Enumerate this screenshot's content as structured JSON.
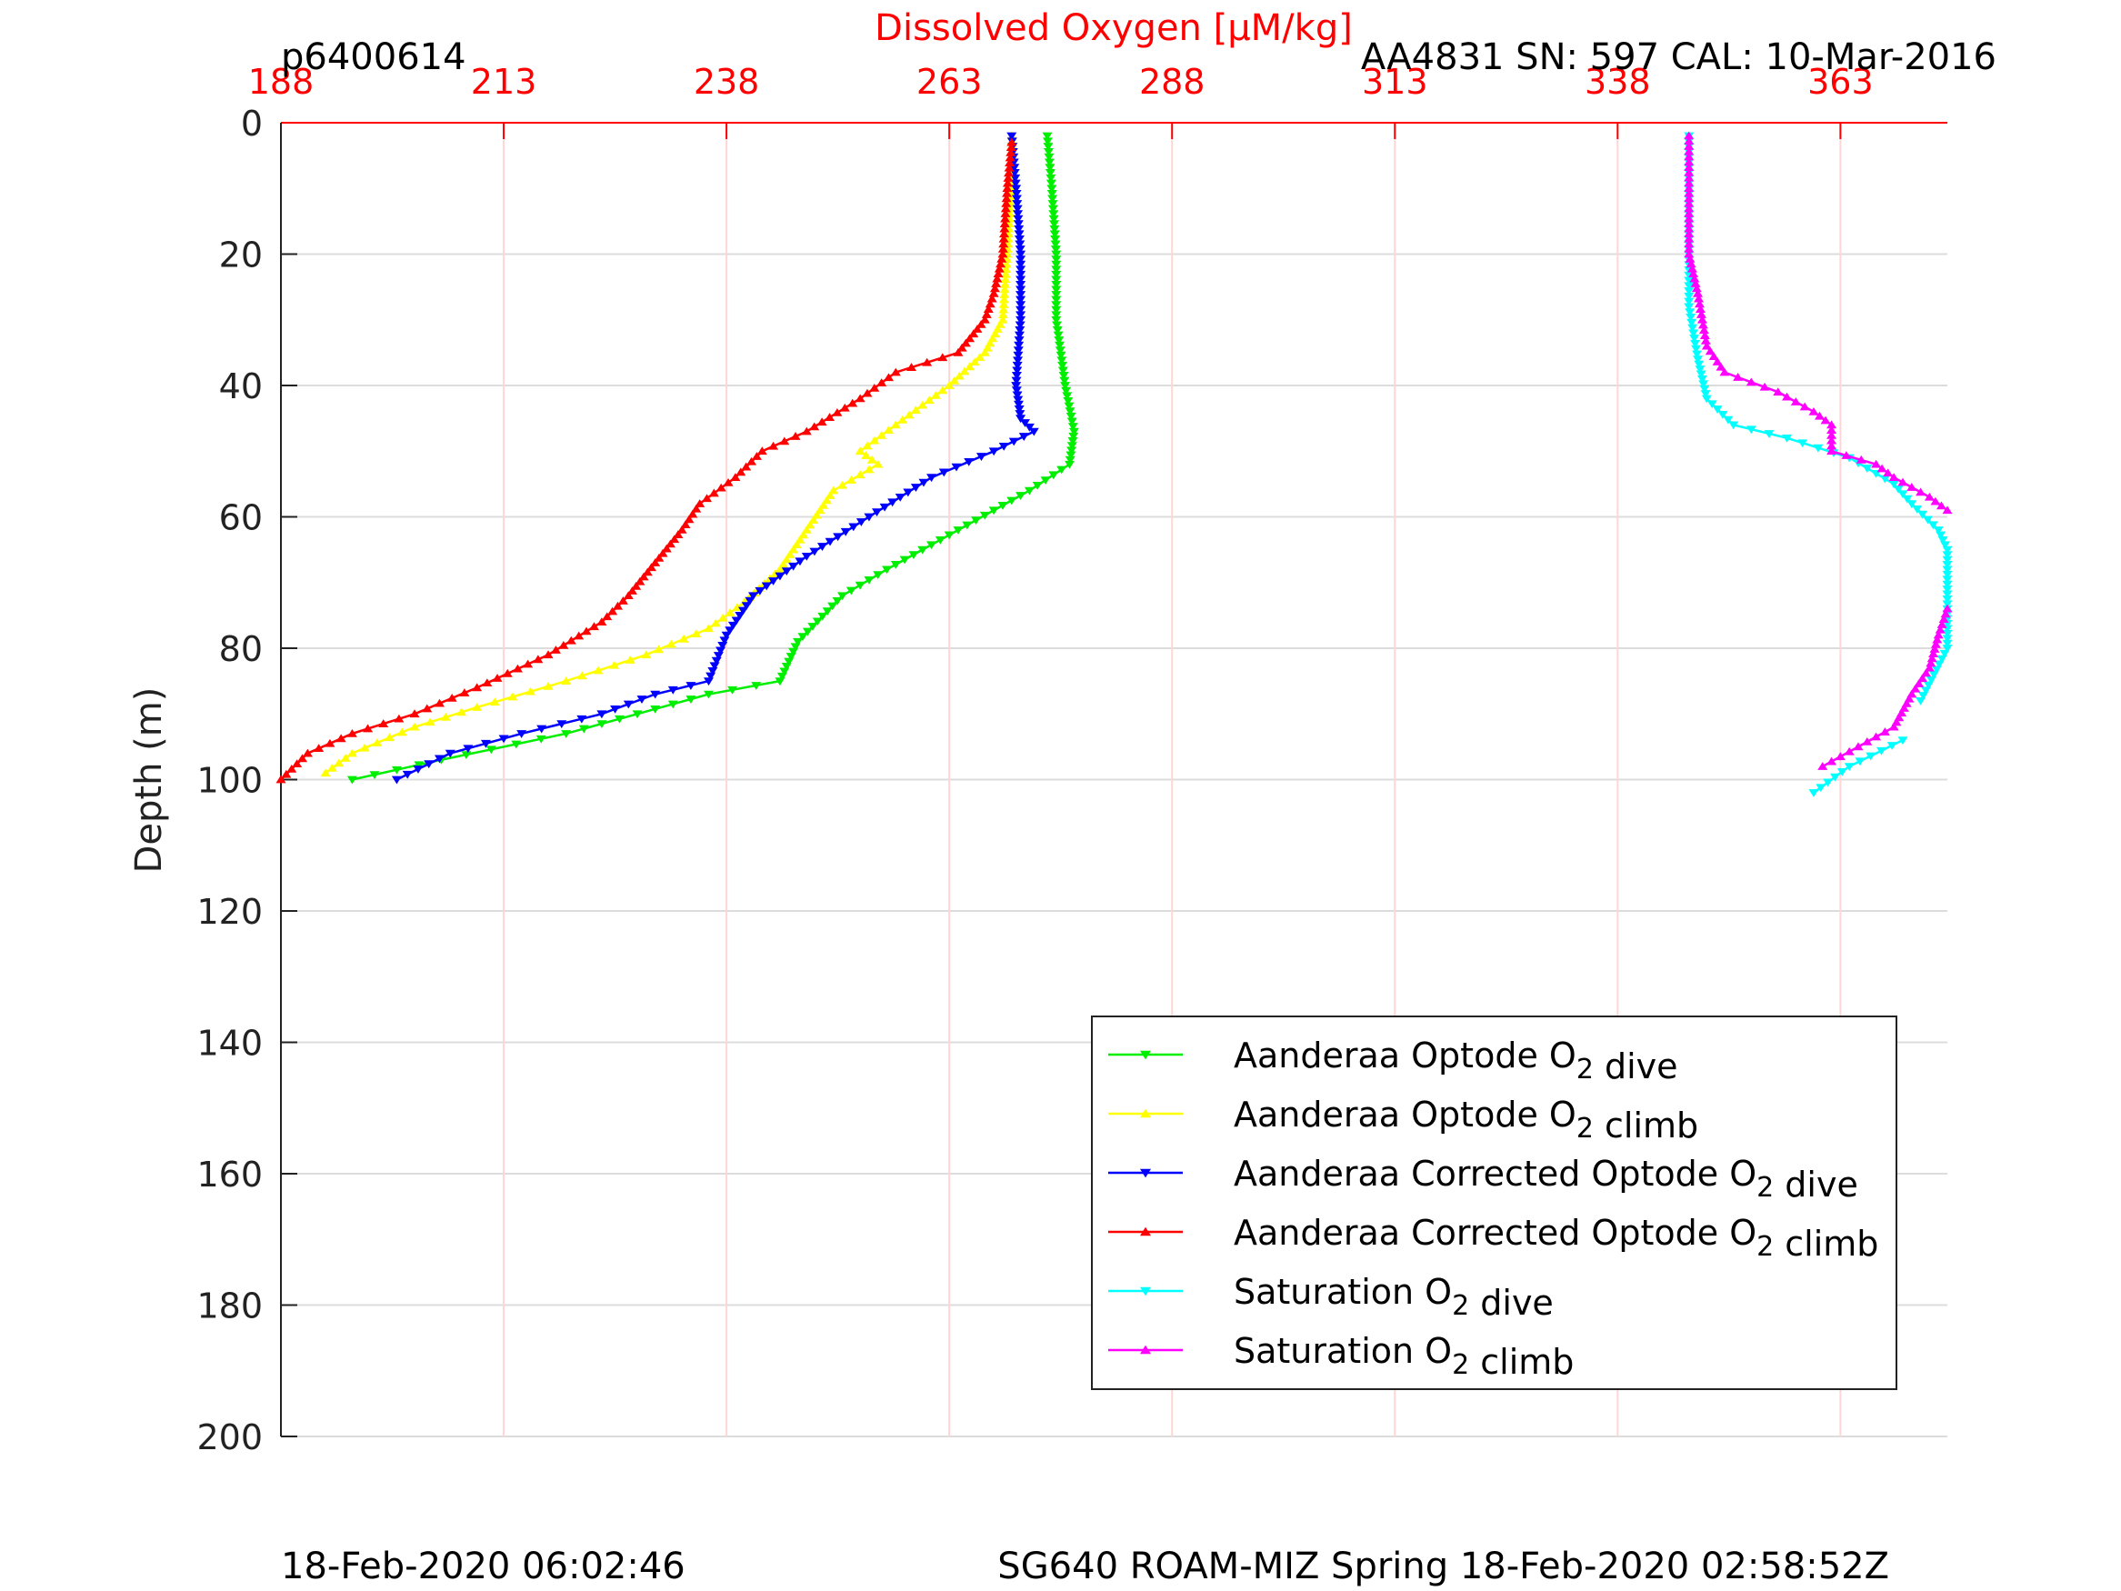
{
  "header": {
    "left": "p6400614",
    "right": "AA4831   SN: 597  CAL: 10-Mar-2016"
  },
  "footer": {
    "left": "18-Feb-2020 06:02:46",
    "right": "SG640 ROAM-MIZ Spring 18-Feb-2020 02:58:52Z"
  },
  "chart_data": {
    "type": "line",
    "x_axis": {
      "label": "Dissolved Oxygen [μM/kg]",
      "position": "top",
      "color": "#ff0000",
      "ticks": [
        188,
        213,
        238,
        263,
        288,
        313,
        338,
        363
      ],
      "range": [
        188,
        375
      ]
    },
    "y_axis": {
      "label": "Depth (m)",
      "ticks": [
        0,
        20,
        40,
        60,
        80,
        100,
        120,
        140,
        160,
        180,
        200
      ],
      "range": [
        0,
        200
      ],
      "reversed": true
    },
    "grid": true,
    "legend_position": "bottom-right",
    "series": [
      {
        "name": "Aanderaa Optode O2 dive",
        "color": "#00ee00",
        "marker": "triangle-down",
        "points": [
          [
            274,
            2
          ],
          [
            274.5,
            10
          ],
          [
            275,
            20
          ],
          [
            275,
            30
          ],
          [
            276,
            40
          ],
          [
            277,
            47
          ],
          [
            276.5,
            52
          ],
          [
            272,
            56
          ],
          [
            264,
            62
          ],
          [
            256,
            68
          ],
          [
            251,
            72
          ],
          [
            246,
            79
          ],
          [
            244,
            85
          ],
          [
            236,
            87
          ],
          [
            228,
            90
          ],
          [
            220,
            93
          ],
          [
            206,
            97
          ],
          [
            196,
            100
          ]
        ]
      },
      {
        "name": "Aanderaa Optode O2 climb",
        "color": "#ffff00",
        "marker": "triangle-up",
        "points": [
          [
            270,
            2
          ],
          [
            270,
            10
          ],
          [
            269.5,
            20
          ],
          [
            269,
            30
          ],
          [
            267,
            35
          ],
          [
            263,
            40
          ],
          [
            257,
            46
          ],
          [
            253,
            50
          ],
          [
            255,
            52
          ],
          [
            250,
            56
          ],
          [
            247,
            62
          ],
          [
            244,
            68
          ],
          [
            240,
            73
          ],
          [
            236,
            77
          ],
          [
            229,
            81
          ],
          [
            220,
            85
          ],
          [
            210,
            89
          ],
          [
            203,
            92
          ],
          [
            196,
            96
          ],
          [
            193,
            99
          ]
        ]
      },
      {
        "name": "Aanderaa Corrected Optode O2 dive",
        "color": "#0000ff",
        "marker": "triangle-down",
        "points": [
          [
            270,
            2
          ],
          [
            270.5,
            10
          ],
          [
            271,
            20
          ],
          [
            271,
            30
          ],
          [
            270.5,
            40
          ],
          [
            271,
            45
          ],
          [
            272.5,
            47
          ],
          [
            268,
            50
          ],
          [
            261,
            54
          ],
          [
            254,
            60
          ],
          [
            247,
            66
          ],
          [
            241,
            72
          ],
          [
            238,
            78
          ],
          [
            236,
            85
          ],
          [
            230,
            87
          ],
          [
            224,
            90
          ],
          [
            215,
            93
          ],
          [
            207,
            96
          ],
          [
            201,
            100
          ]
        ]
      },
      {
        "name": "Aanderaa Corrected Optode O2 climb",
        "color": "#ff0000",
        "marker": "triangle-up",
        "points": [
          [
            270,
            3
          ],
          [
            269.5,
            10
          ],
          [
            269,
            20
          ],
          [
            268,
            26
          ],
          [
            267,
            30
          ],
          [
            264,
            35
          ],
          [
            257,
            38
          ],
          [
            253,
            42
          ],
          [
            247,
            47
          ],
          [
            242,
            50
          ],
          [
            239,
            54
          ],
          [
            235,
            58
          ],
          [
            233,
            62
          ],
          [
            230,
            67
          ],
          [
            227,
            72
          ],
          [
            224,
            76
          ],
          [
            218,
            81
          ],
          [
            210,
            86
          ],
          [
            203,
            90
          ],
          [
            196,
            93
          ],
          [
            191,
            96
          ],
          [
            188,
            100
          ]
        ]
      },
      {
        "name": "Saturation O2 dive",
        "color": "#00ffff",
        "marker": "triangle-down",
        "points": [
          [
            346,
            2
          ],
          [
            346,
            10
          ],
          [
            346,
            20
          ],
          [
            346,
            28
          ],
          [
            347,
            36
          ],
          [
            348,
            42
          ],
          [
            351,
            46
          ],
          [
            357,
            48
          ],
          [
            364,
            51
          ],
          [
            369,
            55
          ],
          [
            371,
            58
          ],
          [
            374,
            62
          ],
          [
            375,
            65
          ],
          [
            375,
            80
          ],
          [
            372,
            88
          ],
          [
            370,
            94
          ],
          [
            364,
            98
          ],
          [
            360,
            102
          ]
        ],
        "gap_after_index": 14
      },
      {
        "name": "Saturation O2 climb",
        "color": "#ff00ff",
        "marker": "triangle-up",
        "points": [
          [
            346,
            2
          ],
          [
            346,
            10
          ],
          [
            346,
            20
          ],
          [
            347,
            26
          ],
          [
            348,
            34
          ],
          [
            350,
            38
          ],
          [
            356,
            41
          ],
          [
            360,
            44
          ],
          [
            362,
            46
          ],
          [
            362,
            50
          ],
          [
            367,
            52
          ],
          [
            369,
            54
          ],
          [
            373,
            57
          ],
          [
            375,
            59
          ],
          [
            375,
            74
          ],
          [
            374,
            78
          ],
          [
            373,
            83
          ],
          [
            371,
            87
          ],
          [
            369,
            92
          ],
          [
            365,
            95
          ],
          [
            361,
            98
          ]
        ],
        "gap_after_index": 13
      }
    ]
  }
}
